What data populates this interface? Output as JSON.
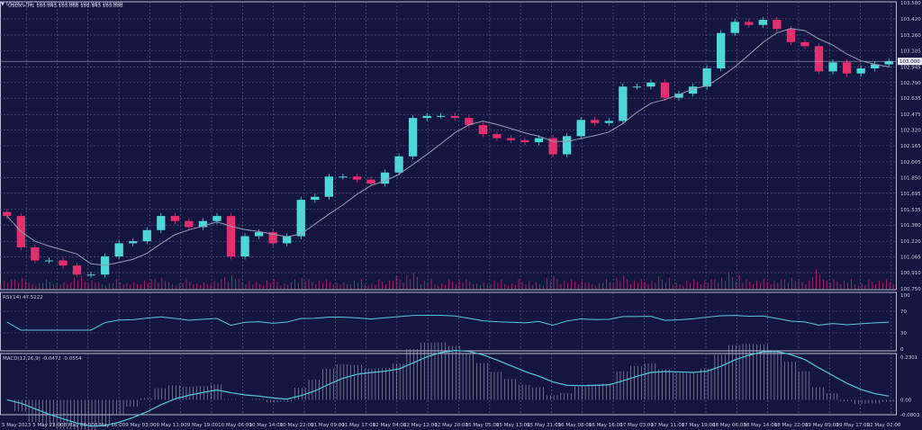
{
  "header": {
    "symbol_info": "USDX+,H1  103.043 103.088 102.943 103.000"
  },
  "colors": {
    "background": "#141640",
    "bull": "#4fd6d6",
    "bear": "#e0306e",
    "ma": "#9a9cb5",
    "grid": "#5d6290",
    "indicator": "#5cc6d8",
    "volume": "#c0266a"
  },
  "chart_data": [
    {
      "type": "candlestick",
      "title": "USDX+,H1  103.043 103.088 102.943 103.000",
      "grid": true,
      "ylim": [
        100.75,
        103.58
      ],
      "y_ticks": [
        "103.580",
        "103.420",
        "103.260",
        "103.105",
        "102.945",
        "102.790",
        "102.635",
        "102.475",
        "102.320",
        "102.165",
        "102.005",
        "101.850",
        "101.695",
        "101.535",
        "101.380",
        "101.220",
        "101.065",
        "100.910",
        "100.750"
      ],
      "current_price": "103.000",
      "x_ticks": [
        "5 May 2023",
        "5 May 23:00",
        "8 May 08:00",
        "8 May 16:00",
        "9 May 03:00",
        "9 May 11:00",
        "9 May 19:00",
        "10 May 06:00",
        "10 May 14:00",
        "10 May 22:00",
        "11 May 09:00",
        "11 May 17:00",
        "12 May 04:00",
        "12 May 12:00",
        "12 May 20:00",
        "15 May 05:00",
        "15 May 13:00",
        "15 May 21:00",
        "16 May 08:00",
        "16 May 16:00",
        "17 May 03:00",
        "17 May 11:00",
        "17 May 19:00",
        "18 May 06:00",
        "18 May 14:00",
        "18 May 22:00",
        "19 May 09:00",
        "19 May 17:00",
        "22 May 02:00"
      ],
      "closes": [
        101.47,
        101.16,
        101.03,
        101.03,
        100.98,
        100.89,
        100.89,
        101.07,
        101.2,
        101.22,
        101.33,
        101.47,
        101.42,
        101.36,
        101.42,
        101.47,
        101.07,
        101.27,
        101.31,
        101.2,
        101.27,
        101.63,
        101.66,
        101.86,
        101.86,
        101.83,
        101.79,
        101.9,
        102.06,
        102.44,
        102.46,
        102.46,
        102.44,
        102.37,
        102.28,
        102.24,
        102.22,
        102.2,
        102.24,
        102.08,
        102.26,
        102.42,
        102.39,
        102.41,
        102.75,
        102.75,
        102.79,
        102.64,
        102.68,
        102.75,
        102.93,
        103.28,
        103.39,
        103.36,
        103.41,
        103.32,
        103.19,
        103.15,
        102.9,
        102.99,
        102.88,
        102.93,
        102.97,
        103.0
      ],
      "volume": [
        3,
        4,
        2,
        3,
        2,
        4,
        3,
        2,
        3,
        2,
        3,
        4,
        2,
        3,
        2,
        3,
        5,
        3,
        2,
        3,
        2,
        4,
        3,
        3,
        2,
        3,
        2,
        3,
        4,
        5,
        3,
        2,
        3,
        3,
        2,
        3,
        2,
        3,
        2,
        4,
        3,
        3,
        2,
        3,
        4,
        3,
        3,
        4,
        2,
        3,
        3,
        4,
        5,
        3,
        3,
        3,
        4,
        3,
        6,
        3,
        3,
        2,
        3,
        3
      ]
    },
    {
      "type": "line",
      "title": "RSI(14) 47.5222",
      "ylim": [
        0,
        100
      ],
      "y_ticks": [
        "100",
        "70",
        "30",
        "0"
      ]
    },
    {
      "type": "line",
      "title": "MACD(12,26,9) -0.0472 -0.0554",
      "ylim": [
        -0.0803,
        0.2301
      ],
      "y_ticks": [
        "0.2301",
        "0.00",
        "-0.0803"
      ]
    }
  ]
}
